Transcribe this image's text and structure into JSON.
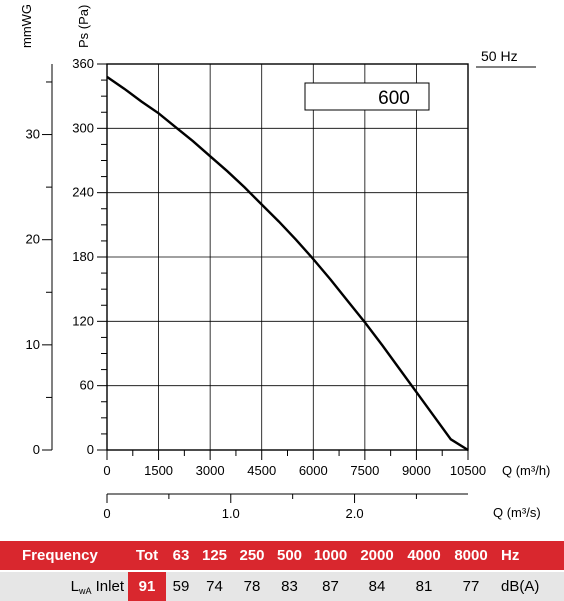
{
  "chart_data": {
    "type": "line",
    "title": "",
    "model_label": "600",
    "frequency_label": "50 Hz",
    "left_axis_labels": [
      "mmWG",
      "Ps (Pa)"
    ],
    "x_axis_label": "Q (m³/h)",
    "x2_axis_label": "Q (m³/s)",
    "x_ticks": [
      "0",
      "1500",
      "3000",
      "4500",
      "6000",
      "7500",
      "9000",
      "10500"
    ],
    "x2_ticks": [
      "0",
      "1.0",
      "2.0"
    ],
    "y_ticks": [
      "0",
      "60",
      "120",
      "180",
      "240",
      "300",
      "360"
    ],
    "y2_ticks": [
      "0",
      "10",
      "20",
      "30"
    ],
    "xlim": [
      0,
      10500
    ],
    "ylim": [
      0,
      360
    ],
    "grid": true,
    "series": [
      {
        "x": [
          0,
          500,
          1000,
          1500,
          2000,
          2500,
          3000,
          3500,
          4000,
          4500,
          5000,
          5500,
          6000,
          6500,
          7000,
          7500,
          8000,
          8500,
          9000,
          9500,
          10000,
          10500
        ],
        "y": [
          348,
          337,
          325,
          314,
          301,
          288,
          274,
          260,
          245,
          229,
          213,
          196,
          178,
          159,
          139,
          119,
          98,
          76,
          54,
          32,
          10,
          0
        ]
      }
    ]
  },
  "table": {
    "header_label": "Frequency",
    "columns": [
      "Tot",
      "63",
      "125",
      "250",
      "500",
      "1000",
      "2000",
      "4000",
      "8000"
    ],
    "unit_header": "Hz",
    "row_label_main": "L",
    "row_label_sub": "wA",
    "row_label_suffix": "Inlet",
    "values": [
      "91",
      "59",
      "74",
      "78",
      "83",
      "87",
      "84",
      "81",
      "77"
    ],
    "unit": "dB(A)"
  }
}
